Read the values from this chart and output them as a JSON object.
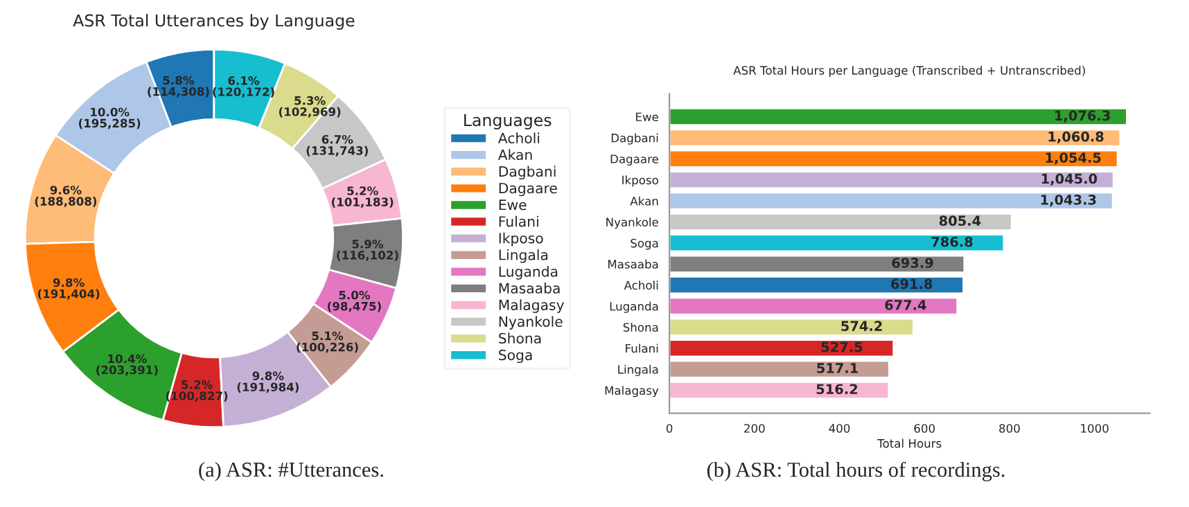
{
  "chart_data": [
    {
      "type": "donut",
      "title": "ASR Total Utterances by Language",
      "legend_title": "Languages",
      "legend": "right",
      "categories": [
        "Acholi",
        "Akan",
        "Dagbani",
        "Dagaare",
        "Ewe",
        "Fulani",
        "Ikposo",
        "Lingala",
        "Luganda",
        "Masaaba",
        "Malagasy",
        "Nyankole",
        "Shona",
        "Soga"
      ],
      "values": [
        114308,
        195285,
        188808,
        191404,
        203391,
        100827,
        191984,
        100226,
        98475,
        116102,
        101183,
        131743,
        102969,
        120172
      ],
      "value_labels": [
        "5.8%\n(114,308)",
        "10.0%\n(195,285)",
        "9.6%\n(188,808)",
        "9.8%\n(191,404)",
        "10.4%\n(203,391)",
        "5.2%\n(100,827)",
        "9.8%\n(191,984)",
        "5.1%\n(100,226)",
        "5.0%\n(98,475)",
        "5.9%\n(116,102)",
        "5.2%\n(101,183)",
        "6.7%\n(131,743)",
        "5.3%\n(102,969)",
        "6.1%\n(120,172)"
      ],
      "colors": [
        "#1f77b4",
        "#aec7e8",
        "#ffbb78",
        "#ff7f0e",
        "#2ca02c",
        "#d62728",
        "#c5b0d5",
        "#c49c94",
        "#e377c2",
        "#7f7f7f",
        "#f7b6d2",
        "#c7c7c7",
        "#dbdb8d",
        "#17becf"
      ],
      "annotations": [
        "(a) ASR: #Utterances."
      ]
    },
    {
      "type": "bar",
      "orientation": "horizontal",
      "title": "ASR Total Hours per Language (Transcribed + Untranscribed)",
      "xlabel": "Total Hours",
      "categories": [
        "Ewe",
        "Dagbani",
        "Dagaare",
        "Ikposo",
        "Akan",
        "Nyankole",
        "Soga",
        "Masaaba",
        "Acholi",
        "Luganda",
        "Shona",
        "Fulani",
        "Lingala",
        "Malagasy"
      ],
      "values": [
        1076.3,
        1060.8,
        1054.5,
        1045.0,
        1043.3,
        805.4,
        786.8,
        693.9,
        691.8,
        677.4,
        574.2,
        527.5,
        517.1,
        516.2
      ],
      "value_labels": [
        "1,076.3",
        "1,060.8",
        "1,054.5",
        "1,045.0",
        "1,043.3",
        "805.4",
        "786.8",
        "693.9",
        "691.8",
        "677.4",
        "574.2",
        "527.5",
        "517.1",
        "516.2"
      ],
      "colors": [
        "#2ca02c",
        "#ffbb78",
        "#ff7f0e",
        "#c5b0d5",
        "#aec7e8",
        "#c7c7c7",
        "#17becf",
        "#7f7f7f",
        "#1f77b4",
        "#e377c2",
        "#dbdb8d",
        "#d62728",
        "#c49c94",
        "#f7b6d2"
      ],
      "xlim": [
        0,
        1130
      ],
      "xticks": [
        0,
        200,
        400,
        600,
        800,
        1000
      ],
      "annotations": [
        "(b) ASR: Total hours of recordings."
      ]
    }
  ]
}
